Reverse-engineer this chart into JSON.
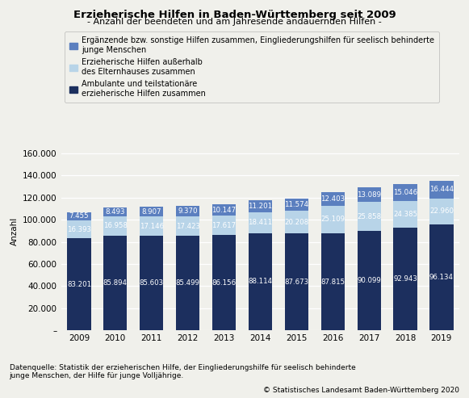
{
  "title": "Erzieherische Hilfen in Baden-Württemberg seit 2009",
  "subtitle": "- Anzahl der beendeten und am Jahresende andauernden Hilfen -",
  "years": [
    2009,
    2010,
    2011,
    2012,
    2013,
    2014,
    2015,
    2016,
    2017,
    2018,
    2019
  ],
  "series1_label": "Ambulante und teilstationäre\nerzieherische Hilfen zusammen",
  "series2_label": "Erzieherische Hilfen außerhalb\ndes Elternhauses zusammen",
  "series3_label": "Ergänzende bzw. sonstige Hilfen zusammen, Eingliederungshilfen für seelisch behinderte\njunge Menschen",
  "series1": [
    83201,
    85894,
    85603,
    85499,
    86156,
    88114,
    87673,
    87815,
    90099,
    92943,
    96134
  ],
  "series2": [
    16393,
    16958,
    17146,
    17423,
    17617,
    18411,
    20208,
    25109,
    25858,
    24385,
    22960
  ],
  "series3": [
    7455,
    8493,
    8907,
    9370,
    10147,
    11201,
    11574,
    12403,
    13089,
    15046,
    16444
  ],
  "color1": "#1c2f5e",
  "color2": "#b8d4e8",
  "color3": "#5b7fbf",
  "ylabel": "Anzahl",
  "ylim": [
    0,
    180000
  ],
  "yticks": [
    0,
    20000,
    40000,
    60000,
    80000,
    100000,
    120000,
    140000,
    160000
  ],
  "source_text": "Datenquelle: Statistik der erzieherischen Hilfe, der Eingliederungshilfe für seelisch behinderte\njunge Menschen, der Hilfe für junge Volljährige.",
  "copyright_text": "© Statistisches Landesamt Baden-Württemberg 2020",
  "background_color": "#f0f0eb",
  "bar_width": 0.65,
  "label_fontsize": 6.2,
  "title_fontsize": 9.5,
  "subtitle_fontsize": 8.0,
  "axis_fontsize": 7.5,
  "legend_fontsize": 7.0,
  "source_fontsize": 6.5
}
